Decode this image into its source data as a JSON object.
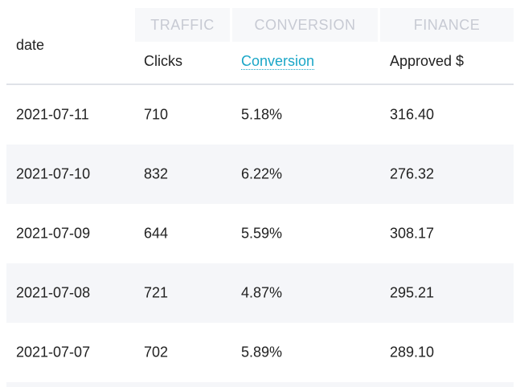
{
  "groups": {
    "traffic": "TRAFFIC",
    "conversion": "CONVERSION",
    "finance": "FINANCE"
  },
  "columns": {
    "date": "date",
    "clicks": "Clicks",
    "conversion": "Conversion",
    "approved": "Approved $"
  },
  "rows": [
    {
      "date": "2021-07-11",
      "clicks": "710",
      "conversion": "5.18%",
      "approved": "316.40"
    },
    {
      "date": "2021-07-10",
      "clicks": "832",
      "conversion": "6.22%",
      "approved": "276.32"
    },
    {
      "date": "2021-07-09",
      "clicks": "644",
      "conversion": "5.59%",
      "approved": "308.17"
    },
    {
      "date": "2021-07-08",
      "clicks": "721",
      "conversion": "4.87%",
      "approved": "295.21"
    },
    {
      "date": "2021-07-07",
      "clicks": "702",
      "conversion": "5.89%",
      "approved": "289.10"
    }
  ]
}
